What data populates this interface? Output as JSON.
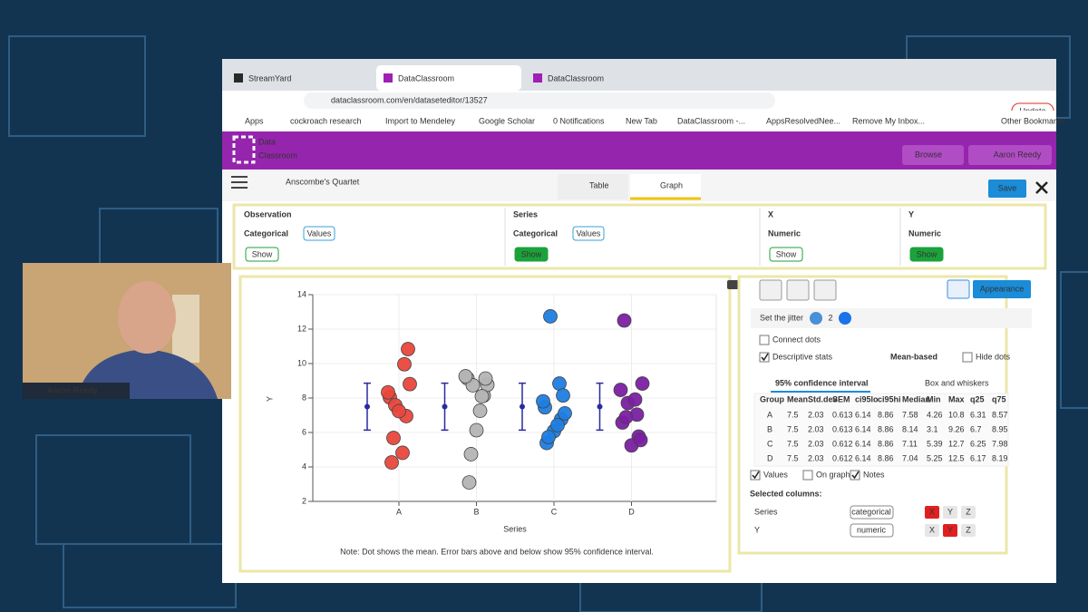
{
  "browser": {
    "tabs": [
      "StreamYard",
      "DataClassroom",
      "DataClassroom"
    ],
    "url": "dataclassroom.com/en/dataseteditor/13527",
    "bookmarks": [
      "Apps",
      "cockroach research",
      "Import to Mendeley",
      "Google Scholar",
      "0 Notifications",
      "New Tab",
      "DataClassroom -...",
      "AppsResolvedNee...",
      "Remove My Inbox...",
      "Other Bookmarks"
    ],
    "update": "Update"
  },
  "app": {
    "logo": [
      "Data",
      "Classroom"
    ],
    "browse": "Browse",
    "user": "Aaron Reedy",
    "dataset": "Anscombe's Quartet",
    "view_tabs": [
      "Table",
      "Graph"
    ],
    "save": "Save"
  },
  "columns": [
    {
      "name": "Observation",
      "type": "Categorical",
      "values": "Values",
      "show": "Show"
    },
    {
      "name": "Series",
      "type": "Categorical",
      "values": "Values",
      "show": "Show"
    },
    {
      "name": "X",
      "type": "Numeric",
      "show": "Show"
    },
    {
      "name": "Y",
      "type": "Numeric",
      "show": "Show"
    }
  ],
  "chart_data": {
    "type": "strip",
    "x_label": "Series",
    "y_label": "Y",
    "categories": [
      "A",
      "B",
      "C",
      "D"
    ],
    "colors": [
      "#e8473c",
      "#b4b4b4",
      "#1f7de0",
      "#7b1fa2"
    ],
    "values": [
      [
        8.04,
        6.95,
        7.58,
        8.81,
        8.33,
        9.96,
        7.24,
        4.26,
        10.84,
        4.82,
        5.68
      ],
      [
        9.14,
        8.14,
        8.74,
        8.77,
        9.26,
        8.1,
        6.13,
        3.1,
        9.13,
        7.26,
        4.74
      ],
      [
        7.46,
        6.77,
        12.74,
        7.11,
        7.81,
        8.84,
        6.08,
        5.39,
        8.15,
        6.42,
        5.73
      ],
      [
        6.58,
        5.76,
        7.71,
        8.84,
        8.47,
        7.04,
        5.25,
        12.5,
        5.56,
        7.91,
        6.89
      ]
    ],
    "means": [
      7.5,
      7.5,
      7.5,
      7.5
    ],
    "ci_low": [
      6.14,
      6.14,
      6.14,
      6.14
    ],
    "ci_high": [
      8.86,
      8.86,
      8.86,
      8.86
    ],
    "mean_color": "#2a2aa0",
    "ylim": [
      2,
      14
    ],
    "yticks": [
      2,
      4,
      6,
      8,
      10,
      12,
      14
    ],
    "grid": true,
    "note": "Note: Dot shows the mean. Error bars above and below show 95% confidence interval."
  },
  "panel": {
    "appearance": "Appearance",
    "jitter_label": "Set the jitter",
    "jitter_value": 2,
    "connect_dots": "Connect dots",
    "descriptive_stats": "Descriptive stats",
    "stat_mode": "Mean-based",
    "hide_dots": "Hide dots",
    "interval": "95% confidence interval",
    "box": "Box and whiskers",
    "stats_table": {
      "header": [
        "Group",
        "Mean",
        "Std.dev",
        "SEM",
        "ci95lo",
        "ci95hi",
        "Median",
        "Min",
        "Max",
        "q25",
        "q75"
      ],
      "rows": [
        [
          "A",
          7.5,
          2.03,
          0.613,
          6.14,
          8.86,
          7.58,
          4.26,
          10.8,
          6.31,
          8.57
        ],
        [
          "B",
          7.5,
          2.03,
          0.613,
          6.14,
          8.86,
          8.14,
          3.1,
          9.26,
          6.7,
          8.95
        ],
        [
          "C",
          7.5,
          2.03,
          0.612,
          6.14,
          8.86,
          7.11,
          5.39,
          12.7,
          6.25,
          7.98
        ],
        [
          "D",
          7.5,
          2.03,
          0.612,
          6.14,
          8.86,
          7.04,
          5.25,
          12.5,
          6.17,
          8.19
        ]
      ]
    },
    "checks": [
      "Values",
      "On graph",
      "Notes"
    ],
    "selected_title": "Selected columns:",
    "selected": [
      {
        "name": "Series",
        "type": "categorical"
      },
      {
        "name": "Y",
        "type": "numeric"
      }
    ],
    "axis_buttons": [
      "X",
      "Y",
      "Z"
    ]
  },
  "webcam": {
    "name": "Aaron Reedy"
  }
}
